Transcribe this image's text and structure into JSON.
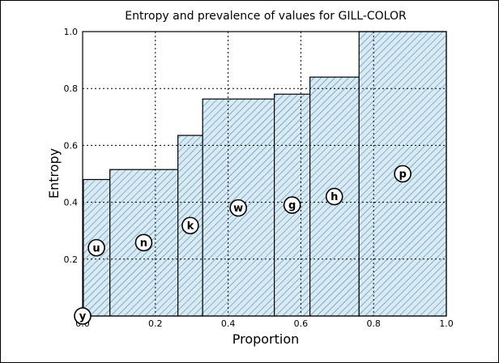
{
  "chart_data": {
    "type": "bar",
    "title": "Entropy and prevalence of values for GILL-COLOR",
    "xlabel": "Proportion",
    "ylabel": "Entropy",
    "xlim": [
      0.0,
      1.0
    ],
    "ylim": [
      0.0,
      1.0
    ],
    "xticks": [
      "0.0",
      "0.2",
      "0.4",
      "0.6",
      "0.8",
      "1.0"
    ],
    "yticks": [
      "0.2",
      "0.4",
      "0.6",
      "0.8",
      "1.0"
    ],
    "grid": true,
    "bars": [
      {
        "label": "y",
        "x0": 0.0,
        "x1": 0.002,
        "value": 0.0
      },
      {
        "label": "u",
        "x0": 0.002,
        "x1": 0.075,
        "value": 0.48
      },
      {
        "label": "n",
        "x0": 0.075,
        "x1": 0.262,
        "value": 0.515
      },
      {
        "label": "k",
        "x0": 0.262,
        "x1": 0.33,
        "value": 0.635
      },
      {
        "label": "w",
        "x0": 0.33,
        "x1": 0.527,
        "value": 0.763
      },
      {
        "label": "g",
        "x0": 0.527,
        "x1": 0.625,
        "value": 0.78
      },
      {
        "label": "h",
        "x0": 0.625,
        "x1": 0.76,
        "value": 0.84
      },
      {
        "label": "p",
        "x0": 0.76,
        "x1": 1.0,
        "value": 1.0
      }
    ],
    "marker_positions": {
      "y": [
        0.0,
        0.0
      ],
      "u": [
        0.038,
        0.24
      ],
      "n": [
        0.168,
        0.258
      ],
      "k": [
        0.296,
        0.318
      ],
      "w": [
        0.428,
        0.38
      ],
      "g": [
        0.576,
        0.39
      ],
      "h": [
        0.692,
        0.42
      ],
      "p": [
        0.88,
        0.5
      ]
    },
    "colors": {
      "bar_fill": "#d6ebf5",
      "hatch": "#4a6f86",
      "edge": "#000000"
    }
  }
}
